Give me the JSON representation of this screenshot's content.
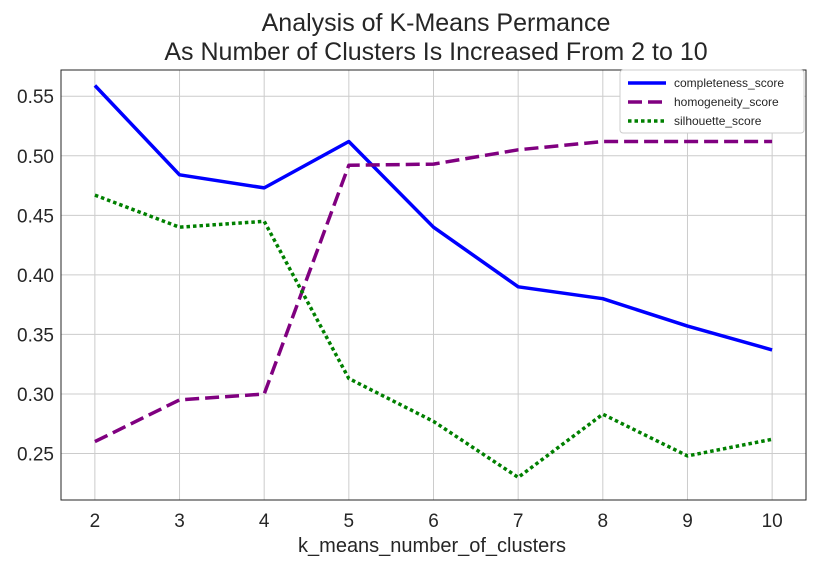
{
  "chart_data": {
    "type": "line",
    "title": [
      "Analysis of K-Means Permance",
      "As Number of Clusters Is Increased From 2 to 10"
    ],
    "xlabel": "k_means_number_of_clusters",
    "ylabel": "",
    "x": [
      2,
      3,
      4,
      5,
      6,
      7,
      8,
      9,
      10
    ],
    "xticks": [
      "2",
      "3",
      "4",
      "5",
      "6",
      "7",
      "8",
      "9",
      "10"
    ],
    "yticks": [
      "0.25",
      "0.30",
      "0.35",
      "0.40",
      "0.45",
      "0.50",
      "0.55"
    ],
    "xlim": [
      1.6,
      10.4
    ],
    "ylim": [
      0.211,
      0.572
    ],
    "grid": true,
    "legend_position": "top-right",
    "series": [
      {
        "name": "completeness_score",
        "color": "#0000ff",
        "dash": "solid",
        "values": [
          0.559,
          0.484,
          0.473,
          0.512,
          0.44,
          0.39,
          0.38,
          0.357,
          0.337
        ]
      },
      {
        "name": "homogeneity_score",
        "color": "#800080",
        "dash": "dashed",
        "values": [
          0.26,
          0.295,
          0.3,
          0.492,
          0.493,
          0.505,
          0.512,
          0.512,
          0.512
        ]
      },
      {
        "name": "silhouette_score",
        "color": "#008000",
        "dash": "dotted",
        "values": [
          0.467,
          0.44,
          0.445,
          0.313,
          0.277,
          0.23,
          0.283,
          0.248,
          0.262
        ]
      }
    ]
  }
}
